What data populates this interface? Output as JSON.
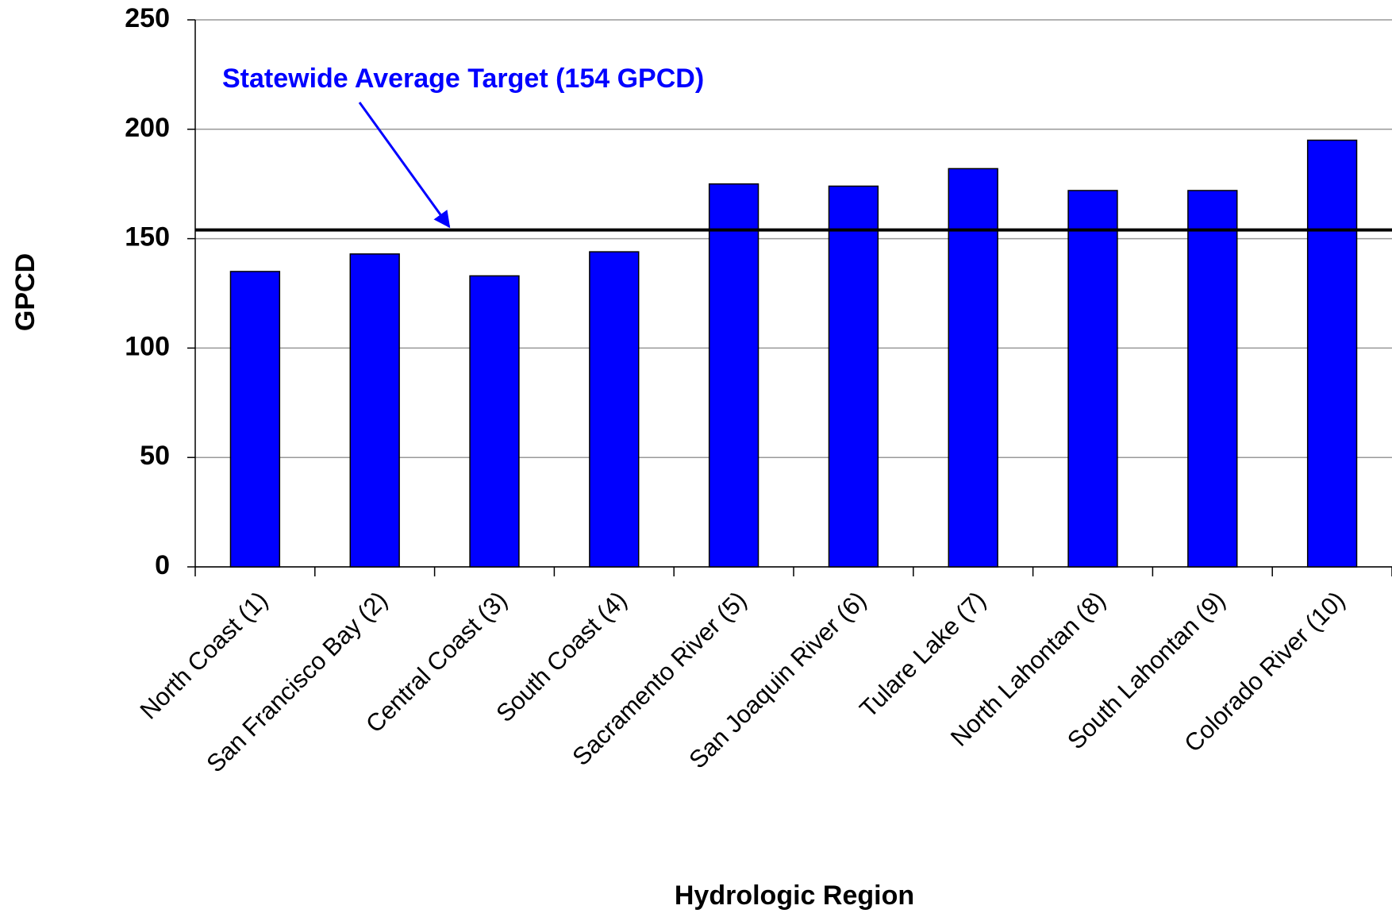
{
  "chart_data": {
    "type": "bar",
    "x_label": "Hydrologic Region",
    "y_label": "GPCD",
    "categories": [
      "North Coast (1)",
      "San Francisco Bay (2)",
      "Central Coast (3)",
      "South Coast (4)",
      "Sacramento River (5)",
      "San Joaquin River (6)",
      "Tulare Lake (7)",
      "North Lahontan (8)",
      "South Lahontan (9)",
      "Colorado River (10)"
    ],
    "values": [
      135,
      143,
      133,
      144,
      175,
      174,
      182,
      172,
      172,
      195
    ],
    "color": "#0000ff",
    "ylim": [
      0,
      250
    ],
    "yticks": [
      0,
      50,
      100,
      150,
      200,
      250
    ],
    "grid": true,
    "reference_line": {
      "value": 154,
      "label": "Statewide Average Target (154 GPCD)",
      "color": "#000000",
      "label_color": "#0000ff"
    }
  }
}
